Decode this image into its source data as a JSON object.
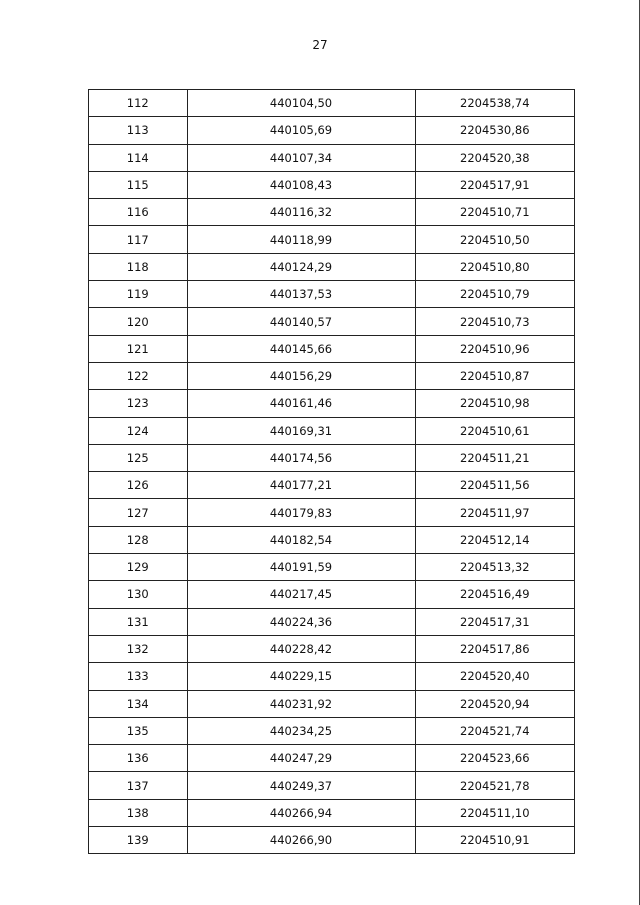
{
  "page_number": "27",
  "table": {
    "rows": [
      [
        "112",
        "440104,50",
        "2204538,74"
      ],
      [
        "113",
        "440105,69",
        "2204530,86"
      ],
      [
        "114",
        "440107,34",
        "2204520,38"
      ],
      [
        "115",
        "440108,43",
        "2204517,91"
      ],
      [
        "116",
        "440116,32",
        "2204510,71"
      ],
      [
        "117",
        "440118,99",
        "2204510,50"
      ],
      [
        "118",
        "440124,29",
        "2204510,80"
      ],
      [
        "119",
        "440137,53",
        "2204510,79"
      ],
      [
        "120",
        "440140,57",
        "2204510,73"
      ],
      [
        "121",
        "440145,66",
        "2204510,96"
      ],
      [
        "122",
        "440156,29",
        "2204510,87"
      ],
      [
        "123",
        "440161,46",
        "2204510,98"
      ],
      [
        "124",
        "440169,31",
        "2204510,61"
      ],
      [
        "125",
        "440174,56",
        "2204511,21"
      ],
      [
        "126",
        "440177,21",
        "2204511,56"
      ],
      [
        "127",
        "440179,83",
        "2204511,97"
      ],
      [
        "128",
        "440182,54",
        "2204512,14"
      ],
      [
        "129",
        "440191,59",
        "2204513,32"
      ],
      [
        "130",
        "440217,45",
        "2204516,49"
      ],
      [
        "131",
        "440224,36",
        "2204517,31"
      ],
      [
        "132",
        "440228,42",
        "2204517,86"
      ],
      [
        "133",
        "440229,15",
        "2204520,40"
      ],
      [
        "134",
        "440231,92",
        "2204520,94"
      ],
      [
        "135",
        "440234,25",
        "2204521,74"
      ],
      [
        "136",
        "440247,29",
        "2204523,66"
      ],
      [
        "137",
        "440249,37",
        "2204521,78"
      ],
      [
        "138",
        "440266,94",
        "2204511,10"
      ],
      [
        "139",
        "440266,90",
        "2204510,91"
      ]
    ]
  }
}
